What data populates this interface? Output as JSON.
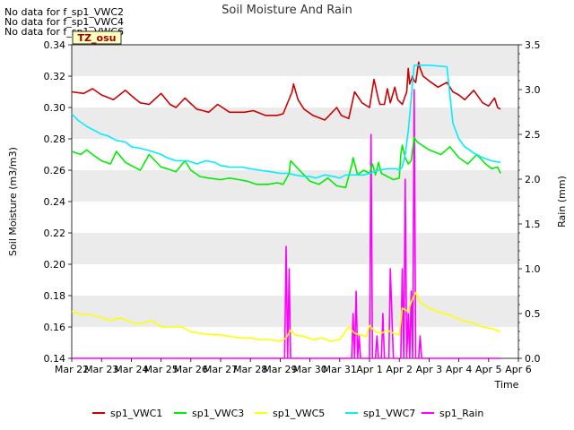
{
  "no_data_messages": [
    "No data for f_sp1_VWC2",
    "No data for f_sp1_VWC4",
    "No data for f_sp1_VWC6"
  ],
  "chart_data": {
    "type": "line",
    "title": "Soil Moisture And Rain",
    "xlabel": "Time",
    "ylabel": "Soil Moisture (m3/m3)",
    "y2label": "Rain (mm)",
    "site_label": "TZ_osu",
    "xlim": [
      "Mar 22",
      "Apr 6"
    ],
    "x_ticks": [
      "Mar 22",
      "Mar 23",
      "Mar 24",
      "Mar 25",
      "Mar 26",
      "Mar 27",
      "Mar 28",
      "Mar 29",
      "Mar 30",
      "Mar 31",
      "Apr 1",
      "Apr 2",
      "Apr 3",
      "Apr 4",
      "Apr 5",
      "Apr 6"
    ],
    "ylim": [
      0.14,
      0.34
    ],
    "y_ticks": [
      "0.14",
      "0.16",
      "0.18",
      "0.20",
      "0.22",
      "0.24",
      "0.26",
      "0.28",
      "0.30",
      "0.32",
      "0.34"
    ],
    "y2lim": [
      0,
      3.5
    ],
    "y2_ticks": [
      "0.0",
      "0.5",
      "1.0",
      "1.5",
      "2.0",
      "2.5",
      "3.0",
      "3.5"
    ],
    "grid": "horizontal bands",
    "legend_position": "bottom",
    "series": [
      {
        "name": "sp1_VWC1",
        "color": "#cc0000",
        "axis": "left",
        "x": [
          0,
          0.4,
          0.7,
          1.0,
          1.4,
          1.8,
          2.1,
          2.3,
          2.6,
          3.0,
          3.3,
          3.5,
          3.8,
          4.2,
          4.4,
          4.6,
          4.9,
          5.3,
          5.6,
          5.8,
          6.1,
          6.5,
          6.9,
          7.1,
          7.4,
          7.45,
          7.6,
          7.8,
          8.1,
          8.5,
          8.9,
          9.05,
          9.3,
          9.5,
          9.75,
          10.0,
          10.15,
          10.3,
          10.35,
          10.5,
          10.6,
          10.7,
          10.85,
          10.95,
          11.1,
          11.25,
          11.3,
          11.35,
          11.45,
          11.5,
          11.55,
          11.65,
          11.7,
          11.8,
          12.0,
          12.3,
          12.6,
          12.8,
          13.0,
          13.2,
          13.5,
          13.8,
          14.0,
          14.2,
          14.3,
          14.4
        ],
        "y": [
          0.31,
          0.309,
          0.312,
          0.308,
          0.305,
          0.311,
          0.306,
          0.303,
          0.302,
          0.309,
          0.302,
          0.3,
          0.306,
          0.299,
          0.298,
          0.297,
          0.302,
          0.297,
          0.297,
          0.297,
          0.298,
          0.295,
          0.295,
          0.296,
          0.31,
          0.315,
          0.305,
          0.299,
          0.295,
          0.292,
          0.3,
          0.295,
          0.293,
          0.31,
          0.303,
          0.3,
          0.318,
          0.305,
          0.302,
          0.302,
          0.312,
          0.303,
          0.313,
          0.305,
          0.302,
          0.31,
          0.325,
          0.315,
          0.32,
          0.317,
          0.316,
          0.329,
          0.325,
          0.32,
          0.317,
          0.313,
          0.316,
          0.31,
          0.308,
          0.305,
          0.311,
          0.303,
          0.301,
          0.306,
          0.3,
          0.299
        ]
      },
      {
        "name": "sp1_VWC3",
        "color": "#00ee00",
        "axis": "left",
        "x": [
          0,
          0.3,
          0.5,
          0.7,
          1.0,
          1.3,
          1.5,
          1.8,
          2.0,
          2.3,
          2.6,
          3.0,
          3.2,
          3.5,
          3.8,
          4.0,
          4.3,
          4.6,
          5.0,
          5.3,
          5.6,
          5.9,
          6.2,
          6.6,
          6.9,
          7.1,
          7.3,
          7.35,
          7.5,
          7.8,
          8.0,
          8.3,
          8.6,
          8.9,
          9.2,
          9.4,
          9.45,
          9.6,
          9.8,
          10.0,
          10.1,
          10.2,
          10.3,
          10.4,
          10.6,
          10.8,
          11.0,
          11.05,
          11.1,
          11.2,
          11.3,
          11.4,
          11.5,
          11.6,
          12.0,
          12.4,
          12.7,
          13.0,
          13.3,
          13.6,
          13.9,
          14.1,
          14.3,
          14.4
        ],
        "y": [
          0.272,
          0.27,
          0.273,
          0.27,
          0.266,
          0.264,
          0.272,
          0.265,
          0.263,
          0.26,
          0.27,
          0.262,
          0.261,
          0.259,
          0.266,
          0.26,
          0.256,
          0.255,
          0.254,
          0.255,
          0.254,
          0.253,
          0.251,
          0.251,
          0.252,
          0.251,
          0.258,
          0.266,
          0.263,
          0.257,
          0.253,
          0.251,
          0.255,
          0.25,
          0.249,
          0.263,
          0.268,
          0.257,
          0.26,
          0.258,
          0.264,
          0.257,
          0.265,
          0.258,
          0.256,
          0.254,
          0.255,
          0.27,
          0.276,
          0.268,
          0.264,
          0.266,
          0.281,
          0.278,
          0.273,
          0.27,
          0.275,
          0.268,
          0.264,
          0.27,
          0.264,
          0.261,
          0.262,
          0.258
        ]
      },
      {
        "name": "sp1_VWC5",
        "color": "#ffff00",
        "axis": "left",
        "x": [
          0,
          0.3,
          0.6,
          1.0,
          1.3,
          1.6,
          2.0,
          2.3,
          2.7,
          3.0,
          3.3,
          3.7,
          4.0,
          4.3,
          4.7,
          5.0,
          5.3,
          5.7,
          6.0,
          6.3,
          6.6,
          7.0,
          7.2,
          7.35,
          7.5,
          7.8,
          8.1,
          8.4,
          8.7,
          9.0,
          9.3,
          9.5,
          9.7,
          9.9,
          10.0,
          10.2,
          10.4,
          10.6,
          10.8,
          11.0,
          11.1,
          11.3,
          11.4,
          11.55,
          11.7,
          12.0,
          12.4,
          12.8,
          13.1,
          13.4,
          13.8,
          14.1,
          14.4
        ],
        "y": [
          0.17,
          0.168,
          0.168,
          0.166,
          0.164,
          0.166,
          0.163,
          0.162,
          0.164,
          0.16,
          0.16,
          0.16,
          0.157,
          0.156,
          0.155,
          0.155,
          0.154,
          0.153,
          0.153,
          0.152,
          0.152,
          0.151,
          0.153,
          0.158,
          0.155,
          0.154,
          0.152,
          0.153,
          0.151,
          0.152,
          0.16,
          0.156,
          0.155,
          0.154,
          0.161,
          0.157,
          0.156,
          0.158,
          0.156,
          0.155,
          0.172,
          0.17,
          0.176,
          0.182,
          0.176,
          0.172,
          0.169,
          0.167,
          0.164,
          0.163,
          0.16,
          0.159,
          0.157
        ]
      },
      {
        "name": "sp1_VWC7",
        "color": "#00eeff",
        "axis": "left",
        "x": [
          0,
          0.2,
          0.5,
          0.8,
          1.0,
          1.2,
          1.5,
          1.8,
          2.0,
          2.3,
          2.7,
          3.0,
          3.2,
          3.5,
          3.9,
          4.2,
          4.5,
          4.8,
          5.0,
          5.3,
          5.7,
          6.0,
          6.3,
          6.7,
          7.0,
          7.3,
          7.5,
          7.8,
          8.0,
          8.2,
          8.5,
          8.8,
          9.0,
          9.2,
          9.5,
          9.8,
          10.0,
          10.3,
          10.6,
          10.9,
          11.0,
          11.1,
          11.2,
          11.3,
          11.35,
          11.5,
          12.0,
          12.6,
          12.8,
          13.0,
          13.2,
          13.5,
          13.8,
          14.1,
          14.4
        ],
        "y": [
          0.296,
          0.292,
          0.288,
          0.285,
          0.283,
          0.282,
          0.279,
          0.278,
          0.275,
          0.274,
          0.272,
          0.27,
          0.268,
          0.266,
          0.266,
          0.264,
          0.266,
          0.265,
          0.263,
          0.262,
          0.262,
          0.261,
          0.26,
          0.259,
          0.258,
          0.258,
          0.257,
          0.256,
          0.256,
          0.255,
          0.257,
          0.256,
          0.255,
          0.257,
          0.257,
          0.257,
          0.258,
          0.26,
          0.261,
          0.261,
          0.26,
          0.262,
          0.27,
          0.285,
          0.295,
          0.327,
          0.327,
          0.326,
          0.29,
          0.28,
          0.275,
          0.271,
          0.268,
          0.266,
          0.265
        ]
      },
      {
        "name": "sp1_Rain",
        "color": "#ff00ff",
        "axis": "right",
        "x": [
          0,
          7.1,
          7.15,
          7.2,
          7.25,
          7.3,
          7.35,
          7.4,
          7.45,
          9.4,
          9.45,
          9.5,
          9.55,
          9.6,
          9.65,
          9.7,
          9.75,
          10.0,
          10.05,
          10.1,
          10.15,
          10.2,
          10.25,
          10.3,
          10.4,
          10.45,
          10.5,
          10.55,
          10.6,
          10.65,
          10.7,
          10.8,
          10.85,
          10.9,
          10.95,
          11.0,
          11.05,
          11.1,
          11.15,
          11.2,
          11.25,
          11.3,
          11.35,
          11.4,
          11.45,
          11.5,
          11.55,
          11.6,
          11.65,
          11.7,
          11.75,
          11.8,
          11.85,
          11.9,
          11.95,
          12.0,
          12.5,
          14.4
        ],
        "y": [
          0,
          0,
          0,
          1.25,
          0,
          1.0,
          0,
          0,
          0,
          0,
          0.5,
          0,
          0.75,
          0,
          0.25,
          0,
          0,
          0,
          2.5,
          0,
          0,
          0,
          0.25,
          0,
          0,
          0.5,
          0,
          0,
          0,
          0,
          1.0,
          0,
          0,
          0,
          0,
          0,
          0,
          1.0,
          0,
          2.0,
          0,
          0.5,
          0,
          0.75,
          0,
          3.0,
          0,
          0,
          0,
          0.25,
          0,
          0,
          0,
          0,
          0,
          0,
          0,
          0
        ]
      }
    ]
  }
}
